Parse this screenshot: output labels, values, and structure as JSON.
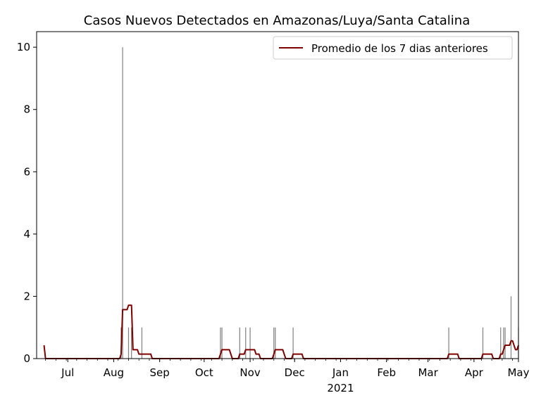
{
  "chart_data": {
    "type": "bar+line",
    "title": "Casos Nuevos Detectados en Amazonas/Luya/Santa Catalina",
    "xlabel": "",
    "ylabel": "",
    "x_range": [
      "2020-06-10",
      "2021-05-01"
    ],
    "ylim": [
      0,
      10.5
    ],
    "y_ticks": [
      0,
      2,
      4,
      6,
      8,
      10
    ],
    "x_ticks": [
      {
        "date": "2020-07-01",
        "label": "Jul"
      },
      {
        "date": "2020-08-01",
        "label": "Aug"
      },
      {
        "date": "2020-09-01",
        "label": "Sep"
      },
      {
        "date": "2020-10-01",
        "label": "Oct"
      },
      {
        "date": "2020-11-01",
        "label": "Nov"
      },
      {
        "date": "2020-12-01",
        "label": "Dec"
      },
      {
        "date": "2021-01-01",
        "label": "Jan",
        "sublabel": "2021"
      },
      {
        "date": "2021-02-01",
        "label": "Feb"
      },
      {
        "date": "2021-03-01",
        "label": "Mar"
      },
      {
        "date": "2021-04-01",
        "label": "Apr"
      },
      {
        "date": "2021-05-01",
        "label": "May"
      }
    ],
    "bar_series": {
      "name": "",
      "color": "#808080",
      "points": [
        {
          "date": "2020-08-06",
          "value": 1
        },
        {
          "date": "2020-08-07",
          "value": 10
        },
        {
          "date": "2020-08-11",
          "value": 1
        },
        {
          "date": "2020-08-13",
          "value": 1
        },
        {
          "date": "2020-08-20",
          "value": 1
        },
        {
          "date": "2020-10-12",
          "value": 1
        },
        {
          "date": "2020-10-13",
          "value": 1
        },
        {
          "date": "2020-10-25",
          "value": 1
        },
        {
          "date": "2020-10-29",
          "value": 1
        },
        {
          "date": "2020-11-01",
          "value": 1
        },
        {
          "date": "2020-11-17",
          "value": 1
        },
        {
          "date": "2020-11-18",
          "value": 1
        },
        {
          "date": "2020-11-30",
          "value": 1
        },
        {
          "date": "2021-03-15",
          "value": 1
        },
        {
          "date": "2021-04-07",
          "value": 1
        },
        {
          "date": "2021-04-19",
          "value": 1
        },
        {
          "date": "2021-04-21",
          "value": 1
        },
        {
          "date": "2021-04-22",
          "value": 1
        },
        {
          "date": "2021-04-26",
          "value": 2
        },
        {
          "date": "2021-05-01",
          "value": 1
        }
      ]
    },
    "line_series": {
      "name": "Promedio de los 7 dias anteriores",
      "color": "#800000",
      "start_value": {
        "date": "2020-06-15",
        "value": 0.43
      }
    },
    "legend_position": "top-right"
  }
}
